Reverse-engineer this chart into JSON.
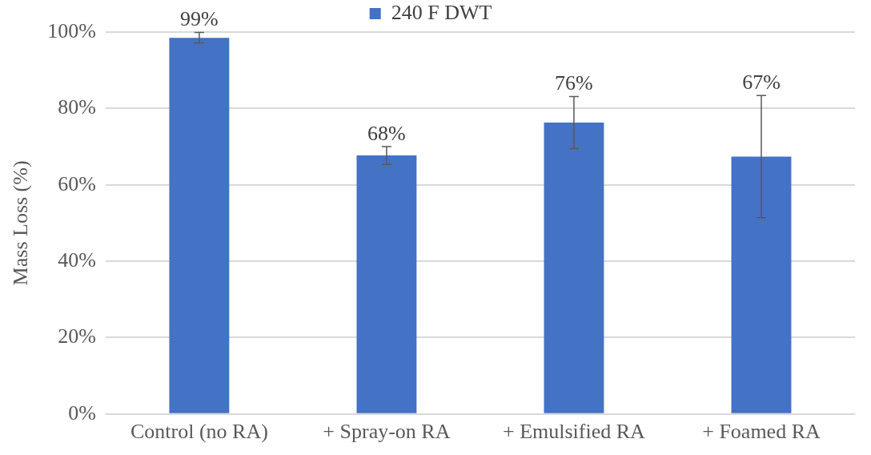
{
  "chart_data": {
    "type": "bar",
    "ylabel": "Mass Loss (%)",
    "categories": [
      "Control (no RA)",
      "+ Spray-on RA",
      "+ Emulsified RA",
      "+ Foamed RA"
    ],
    "series": [
      {
        "name": "240 F DWT",
        "color": "#4472c4",
        "values": [
          98.5,
          67.7,
          76.3,
          67.4
        ],
        "errors": [
          1.4,
          2.3,
          6.8,
          16
        ],
        "value_labels": [
          "99%",
          "68%",
          "76%",
          "67%"
        ]
      }
    ],
    "ylim": [
      0,
      100
    ],
    "yticks": [
      {
        "value": 0,
        "label": "0%"
      },
      {
        "value": 20,
        "label": "20%"
      },
      {
        "value": 40,
        "label": "40%"
      },
      {
        "value": 60,
        "label": "60%"
      },
      {
        "value": 80,
        "label": "80%"
      },
      {
        "value": 100,
        "label": "100%"
      }
    ],
    "grid": "y",
    "legend": "top"
  }
}
